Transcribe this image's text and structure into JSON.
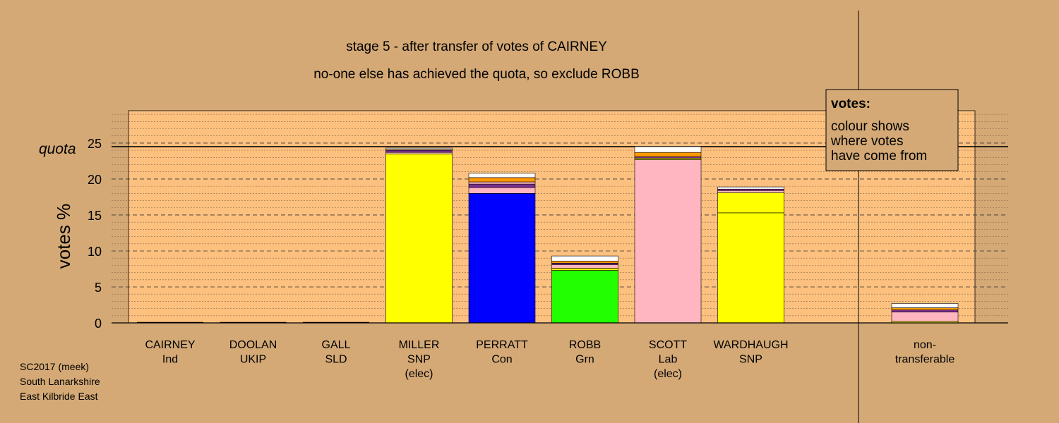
{
  "title": "stage 5 - after transfer of votes of CAIRNEY",
  "subtitle": "no-one else has achieved the quota, so exclude ROBB",
  "legend": {
    "title": "votes:",
    "lines": [
      "colour shows",
      "where votes",
      "have come from"
    ]
  },
  "footer": [
    "SC2017 (meek)",
    "South Lanarkshire",
    "East Kilbride East"
  ],
  "colors": {
    "background": "#d4a976",
    "plot_background": "#fcc07f",
    "SNP": "#ffff00",
    "Con": "#0000ff",
    "Grn": "#22ff00",
    "Lab": "#ffb6c1",
    "Ind": "#ffffff",
    "UKIP": "#7b2d8e",
    "SLD": "#ff9900",
    "other": "#ffffff"
  },
  "chart_data": {
    "type": "bar",
    "stacked": true,
    "title": "stage 5 - after transfer of votes of CAIRNEY",
    "subtitle": "no-one else has achieved the quota, so exclude ROBB",
    "ylabel": "votes %",
    "ylim": [
      0,
      29.5
    ],
    "yticks": [
      0,
      5,
      10,
      15,
      20,
      25
    ],
    "quota": 24.5,
    "quota_label": "quota",
    "grid": true,
    "legend_position": "top-right",
    "categories": [
      {
        "lines": [
          "CAIRNEY",
          "Ind"
        ],
        "segments": []
      },
      {
        "lines": [
          "DOOLAN",
          "UKIP"
        ],
        "segments": []
      },
      {
        "lines": [
          "GALL",
          "SLD"
        ],
        "segments": []
      },
      {
        "lines": [
          "MILLER",
          "SNP",
          "(elec)"
        ],
        "segments": [
          {
            "from": "SNP",
            "value": 23.5,
            "color": "#ffff00"
          },
          {
            "from": "Lab",
            "value": 0.2,
            "color": "#ffb6c1"
          },
          {
            "from": "UKIP",
            "value": 0.3,
            "color": "#7b2d8e"
          },
          {
            "from": "SLD",
            "value": 0.1,
            "color": "#ff9900"
          },
          {
            "from": "Ind",
            "value": 0.2,
            "color": "#ffffff"
          }
        ]
      },
      {
        "lines": [
          "PERRATT",
          "Con"
        ],
        "segments": [
          {
            "from": "Con",
            "value": 18.0,
            "color": "#0000ff"
          },
          {
            "from": "Lab",
            "value": 0.8,
            "color": "#ffb6c1"
          },
          {
            "from": "UKIP",
            "value": 0.5,
            "color": "#7b2d8e"
          },
          {
            "from": "Lab",
            "value": 0.3,
            "color": "#ffb6c1"
          },
          {
            "from": "SLD",
            "value": 0.6,
            "color": "#ff9900"
          },
          {
            "from": "Ind",
            "value": 0.6,
            "color": "#ffffff"
          }
        ]
      },
      {
        "lines": [
          "ROBB",
          "Grn"
        ],
        "segments": [
          {
            "from": "Grn",
            "value": 7.3,
            "color": "#22ff00"
          },
          {
            "from": "SNP",
            "value": 0.3,
            "color": "#ffff00"
          },
          {
            "from": "Lab",
            "value": 0.5,
            "color": "#ffb6c1"
          },
          {
            "from": "UKIP",
            "value": 0.2,
            "color": "#7b2d8e"
          },
          {
            "from": "SLD",
            "value": 0.3,
            "color": "#ff9900"
          },
          {
            "from": "Ind",
            "value": 0.7,
            "color": "#ffffff"
          }
        ]
      },
      {
        "lines": [
          "SCOTT",
          "Lab",
          "(elec)"
        ],
        "segments": [
          {
            "from": "Lab",
            "value": 22.7,
            "color": "#ffb6c1"
          },
          {
            "from": "SNP",
            "value": 0.2,
            "color": "#ffff00"
          },
          {
            "from": "UKIP",
            "value": 0.2,
            "color": "#7b2d8e"
          },
          {
            "from": "SLD",
            "value": 0.6,
            "color": "#ff9900"
          },
          {
            "from": "Ind",
            "value": 0.8,
            "color": "#ffffff"
          }
        ]
      },
      {
        "lines": [
          "WARDHAUGH",
          "SNP"
        ],
        "segments": [
          {
            "from": "SNP",
            "value": 15.3,
            "color": "#ffff00"
          },
          {
            "from": "SNP",
            "value": 2.8,
            "color": "#ffff00"
          },
          {
            "from": "Lab",
            "value": 0.3,
            "color": "#ffb6c1"
          },
          {
            "from": "UKIP",
            "value": 0.2,
            "color": "#7b2d8e"
          },
          {
            "from": "Ind",
            "value": 0.3,
            "color": "#ffffff"
          }
        ]
      },
      {
        "lines": [
          "non-",
          "transferable"
        ],
        "separated": true,
        "segments": [
          {
            "from": "SNP",
            "value": 0.2,
            "color": "#ffff00"
          },
          {
            "from": "Lab",
            "value": 1.3,
            "color": "#ffb6c1"
          },
          {
            "from": "UKIP",
            "value": 0.3,
            "color": "#7b2d8e"
          },
          {
            "from": "SLD",
            "value": 0.3,
            "color": "#ff9900"
          },
          {
            "from": "Ind",
            "value": 0.6,
            "color": "#ffffff"
          }
        ]
      }
    ]
  }
}
